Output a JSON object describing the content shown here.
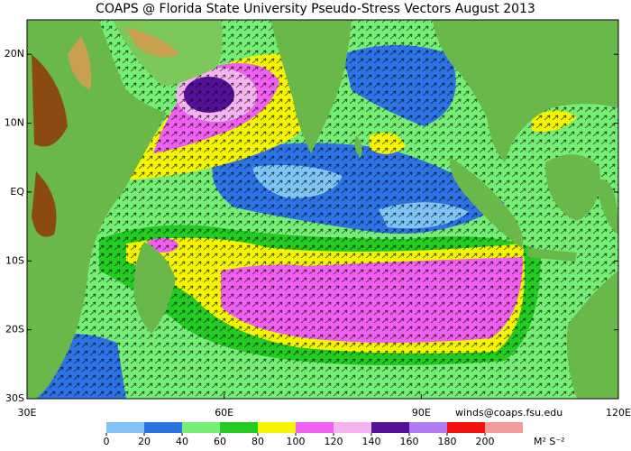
{
  "title": "COAPS @ Florida State University Pseudo-Stress Vectors August 2013",
  "map": {
    "lon_range": [
      30,
      120
    ],
    "lat_range": [
      -30,
      25
    ],
    "lat_ticks": [
      {
        "value": 20,
        "label": "20N"
      },
      {
        "value": 10,
        "label": "10N"
      },
      {
        "value": 0,
        "label": "EQ"
      },
      {
        "value": -10,
        "label": "10S"
      },
      {
        "value": -20,
        "label": "20S"
      },
      {
        "value": -30,
        "label": "30S"
      }
    ],
    "lon_ticks": [
      {
        "value": 30,
        "label": "30E"
      },
      {
        "value": 60,
        "label": "60E"
      },
      {
        "value": 90,
        "label": "90E"
      },
      {
        "value": 120,
        "label": "120E"
      }
    ]
  },
  "contact": "winds@coaps.fsu.edu",
  "colorbar": {
    "ticks": [
      0,
      20,
      40,
      60,
      80,
      100,
      120,
      140,
      160,
      180,
      200
    ],
    "colors": [
      "#7fc4f5",
      "#2d73e6",
      "#74ee74",
      "#22cc22",
      "#f5f500",
      "#f060f0",
      "#f5b4f0",
      "#55109a",
      "#b27af0",
      "#f51010",
      "#f59a9a"
    ],
    "units": "M² S⁻²"
  }
}
